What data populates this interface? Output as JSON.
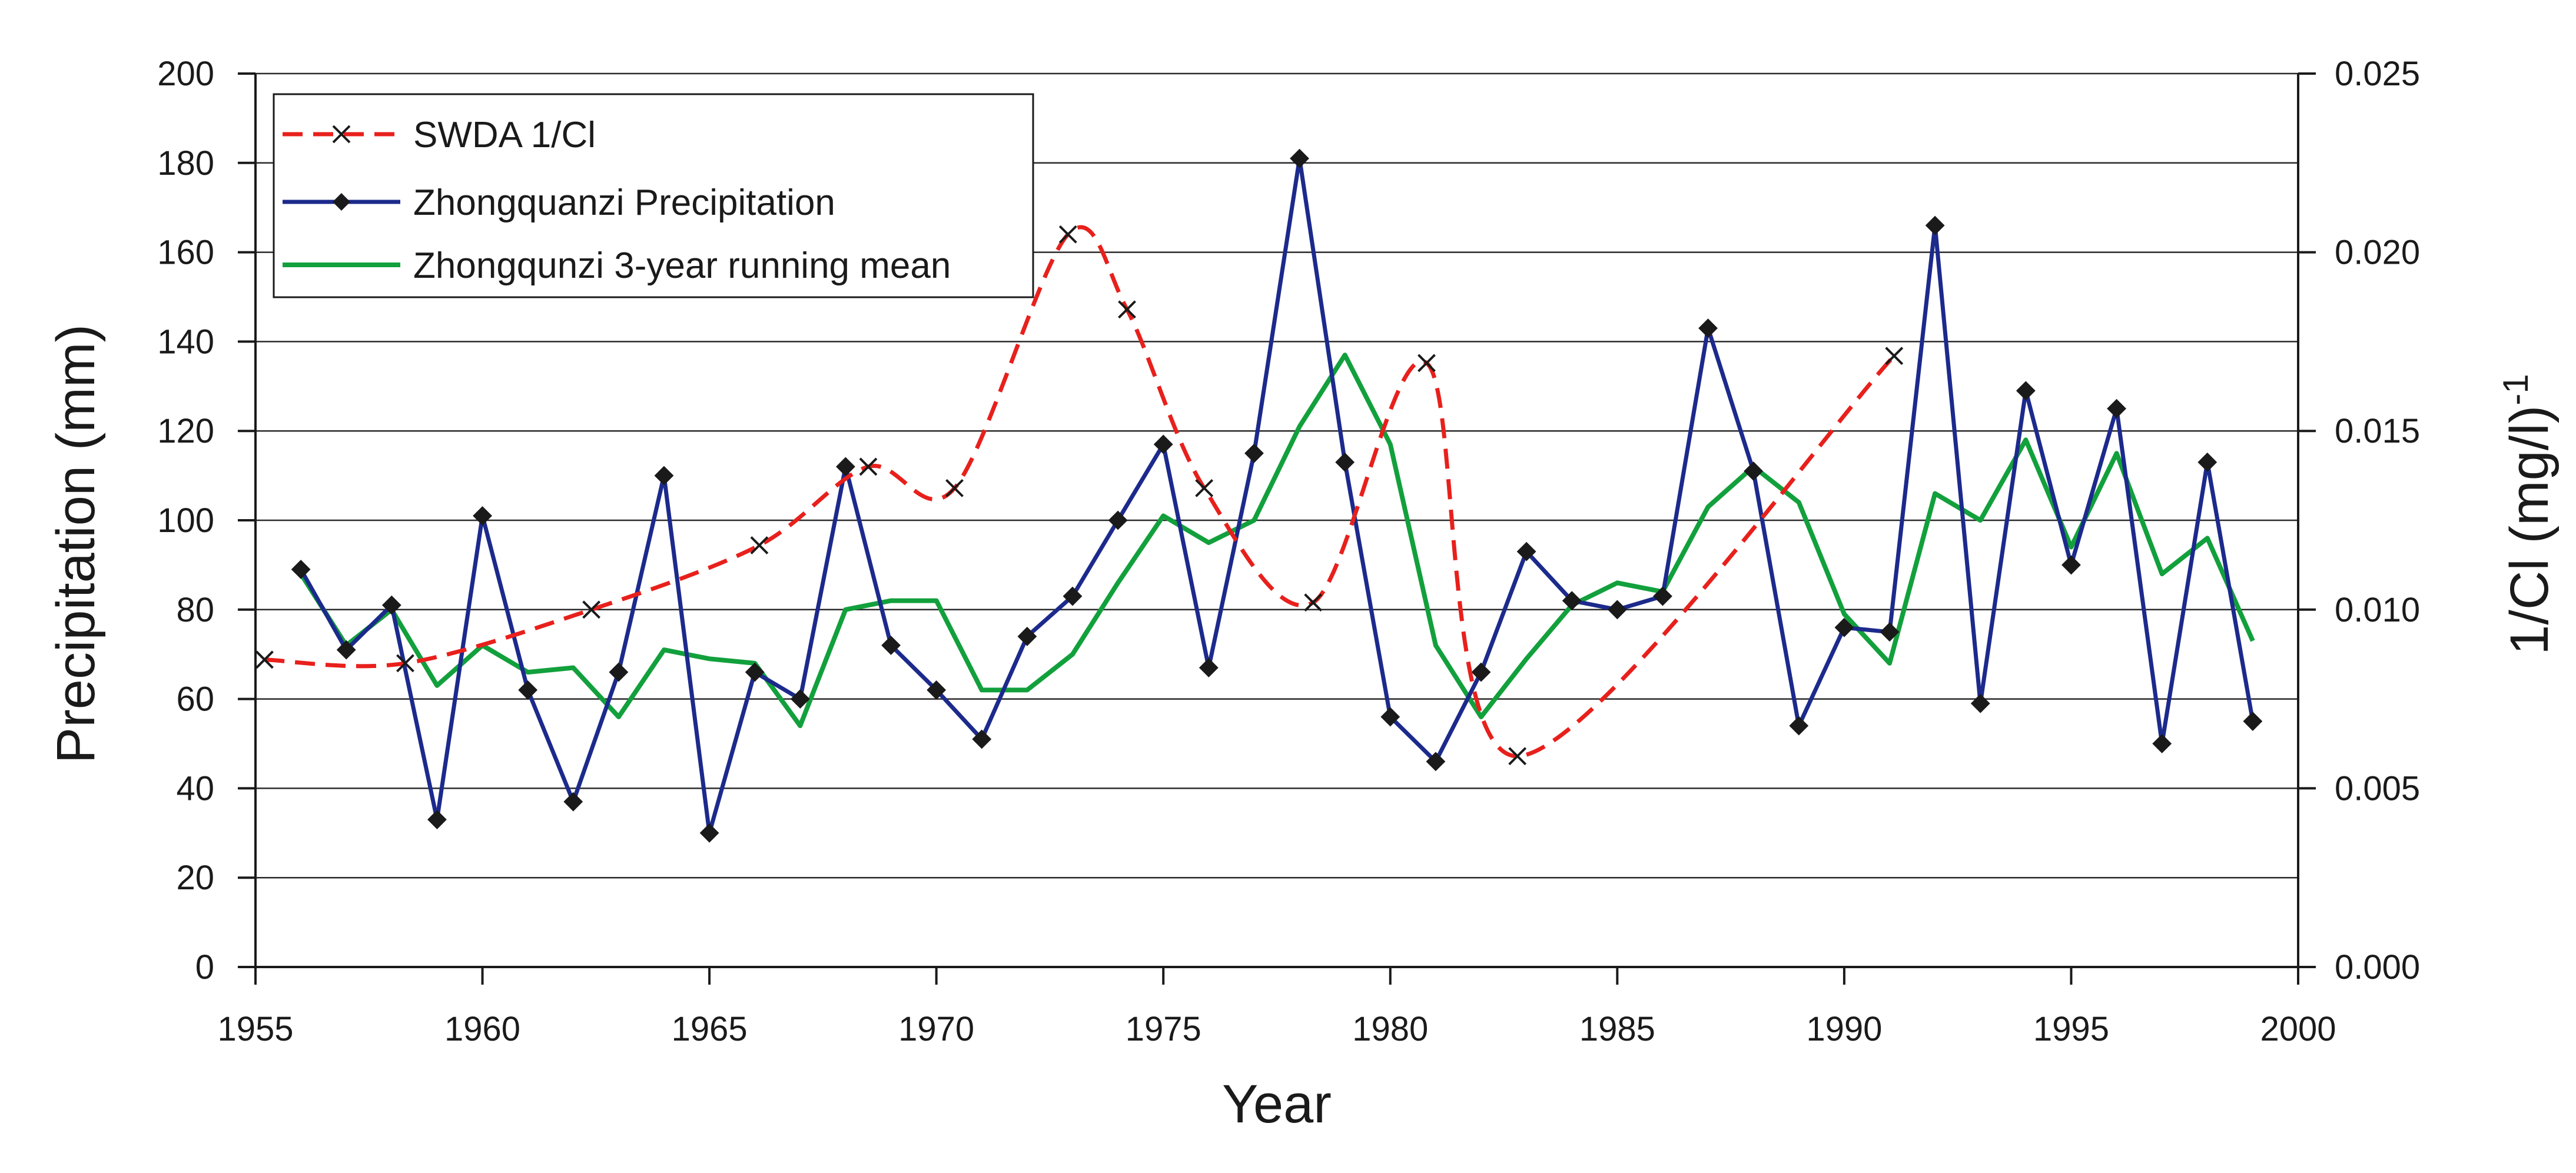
{
  "chart_data": {
    "type": "line",
    "title": "",
    "xlabel": "Year",
    "ylabel": "Precipitation (mm)",
    "y2label_main": "1/Cl (mg/l)",
    "y2label_exp": "-1",
    "xlim": [
      1955,
      2000
    ],
    "ylim": [
      0,
      200
    ],
    "y2lim": [
      0.0,
      0.025
    ],
    "grid": true,
    "legend_position": "top-left",
    "x_ticks": [
      1955,
      1960,
      1965,
      1970,
      1975,
      1980,
      1985,
      1990,
      1995,
      2000
    ],
    "y_ticks": [
      0,
      20,
      40,
      60,
      80,
      100,
      120,
      140,
      160,
      180,
      200
    ],
    "y2_ticks": [
      "0.000",
      "0.005",
      "0.010",
      "0.015",
      "0.020",
      "0.025"
    ],
    "colors": {
      "swda": "#e8201c",
      "precip": "#1c2a8c",
      "mean": "#12a03c",
      "grid": "#2a2a2a"
    },
    "series": [
      {
        "name": "SWDA 1/Cl",
        "axis": "right",
        "style": "dashed-x",
        "x": [
          1955.2,
          1958.3,
          1962.4,
          1966.1,
          1968.5,
          1970.4,
          1972.9,
          1974.2,
          1975.9,
          1978.3,
          1980.8,
          1982.8,
          1991.1
        ],
        "values": [
          0.0086,
          0.0085,
          0.01,
          0.0118,
          0.014,
          0.0134,
          0.0205,
          0.0184,
          0.0134,
          0.0102,
          0.0169,
          0.0059,
          0.0171
        ]
      },
      {
        "name": "Zhongquanzi Precipitation",
        "axis": "left",
        "style": "solid-diamond",
        "x": [
          1956,
          1957,
          1958,
          1959,
          1960,
          1961,
          1962,
          1963,
          1964,
          1965,
          1966,
          1967,
          1968,
          1969,
          1970,
          1971,
          1972,
          1973,
          1974,
          1975,
          1976,
          1977,
          1978,
          1979,
          1980,
          1981,
          1982,
          1983,
          1984,
          1985,
          1986,
          1987,
          1988,
          1989,
          1990,
          1991,
          1992,
          1993,
          1994,
          1995,
          1996,
          1997,
          1998,
          1999
        ],
        "values": [
          89,
          71,
          81,
          33,
          101,
          62,
          37,
          66,
          110,
          30,
          66,
          60,
          112,
          72,
          62,
          51,
          74,
          83,
          100,
          117,
          67,
          115,
          181,
          113,
          56,
          46,
          66,
          93,
          82,
          80,
          83,
          143,
          111,
          54,
          76,
          75,
          166,
          59,
          129,
          90,
          125,
          50,
          113,
          55
        ]
      },
      {
        "name": "Zhongqunzi 3-year running mean",
        "axis": "left",
        "style": "solid",
        "x": [
          1956,
          1957,
          1958,
          1959,
          1960,
          1961,
          1962,
          1963,
          1964,
          1965,
          1966,
          1967,
          1968,
          1969,
          1970,
          1971,
          1972,
          1973,
          1974,
          1975,
          1976,
          1977,
          1978,
          1979,
          1980,
          1981,
          1982,
          1983,
          1984,
          1985,
          1986,
          1987,
          1988,
          1989,
          1990,
          1991,
          1992,
          1993,
          1994,
          1995,
          1996,
          1997,
          1998,
          1999
        ],
        "values": [
          88,
          72,
          80,
          63,
          72,
          66,
          67,
          56,
          71,
          69,
          68,
          54,
          80,
          82,
          82,
          62,
          62,
          70,
          86,
          101,
          95,
          100,
          121,
          137,
          117,
          72,
          56,
          69,
          81,
          86,
          84,
          103,
          112,
          104,
          79,
          68,
          106,
          100,
          118,
          94,
          115,
          88,
          96,
          73
        ]
      }
    ]
  }
}
